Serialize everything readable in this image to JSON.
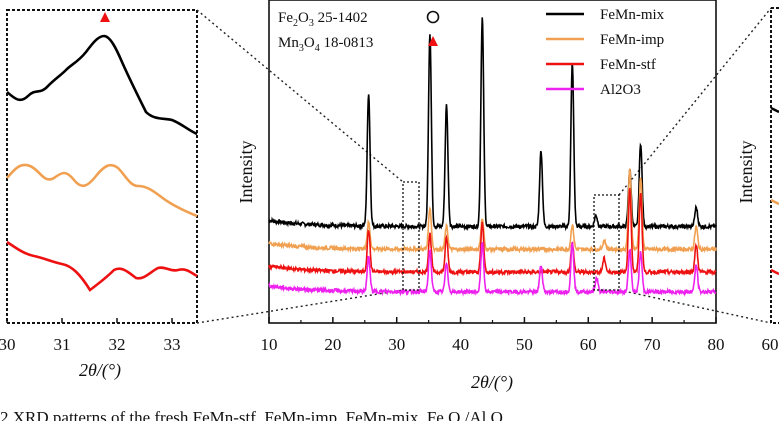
{
  "chart_data": [
    {
      "type": "line",
      "panel": "main",
      "xlabel": "2θ/(°)",
      "ylabel": "Intensity",
      "xlim": [
        10,
        80
      ],
      "xticks": [
        "10",
        "20",
        "30",
        "40",
        "50",
        "60",
        "70",
        "80"
      ],
      "phase_labels": [
        {
          "text_main": "Fe",
          "sub1": "2",
          "text_mid": "O",
          "sub2": "3",
          "text_tail": " 25-1402",
          "marker": "circle"
        },
        {
          "text_main": "Mn",
          "sub1": "3",
          "text_mid": "O",
          "sub2": "4",
          "text_tail": " 18-0813",
          "marker": "triangle"
        }
      ],
      "series": [
        {
          "name": "FeMn-mix",
          "color": "#000000",
          "baseline": 0.92,
          "peaks": [
            [
              25.6,
              1.75
            ],
            [
              35.2,
              2.55
            ],
            [
              37.8,
              1.6
            ],
            [
              43.4,
              2.75
            ],
            [
              52.6,
              1.0
            ],
            [
              57.5,
              2.15
            ],
            [
              61.2,
              0.15
            ],
            [
              66.5,
              0.75
            ],
            [
              68.2,
              1.1
            ],
            [
              76.9,
              0.25
            ]
          ]
        },
        {
          "name": "FeMn-imp",
          "color": "#F0A050",
          "baseline": 0.62,
          "peaks": [
            [
              25.6,
              0.35
            ],
            [
              35.2,
              0.55
            ],
            [
              37.8,
              0.3
            ],
            [
              43.4,
              0.4
            ],
            [
              57.5,
              0.32
            ],
            [
              62.5,
              0.12
            ],
            [
              66.5,
              1.05
            ],
            [
              68.2,
              0.95
            ],
            [
              76.9,
              0.3
            ]
          ]
        },
        {
          "name": "FeMn-stf",
          "color": "#EE1111",
          "baseline": 0.32,
          "peaks": [
            [
              25.6,
              0.55
            ],
            [
              35.2,
              0.5
            ],
            [
              37.8,
              0.45
            ],
            [
              43.4,
              0.65
            ],
            [
              57.5,
              0.38
            ],
            [
              62.5,
              0.18
            ],
            [
              66.5,
              1.1
            ],
            [
              68.2,
              1.05
            ],
            [
              76.9,
              0.35
            ]
          ]
        },
        {
          "name": "Al2O3",
          "color": "#EE22EE",
          "baseline": 0.06,
          "peaks": [
            [
              25.6,
              0.45
            ],
            [
              35.2,
              0.55
            ],
            [
              37.8,
              0.38
            ],
            [
              43.4,
              0.65
            ],
            [
              52.6,
              0.35
            ],
            [
              57.5,
              0.65
            ],
            [
              61.3,
              0.18
            ],
            [
              66.5,
              0.55
            ],
            [
              68.2,
              0.52
            ],
            [
              76.9,
              0.35
            ]
          ]
        }
      ]
    },
    {
      "type": "line",
      "panel": "inset-left",
      "xlabel": "2θ/(°)",
      "xlim": [
        30,
        33.5
      ],
      "xticks": [
        "30",
        "31",
        "32",
        "33"
      ],
      "marker": "triangle",
      "series": [
        {
          "name": "FeMn-mix",
          "color": "#000000"
        },
        {
          "name": "FeMn-imp",
          "color": "#F0A050"
        },
        {
          "name": "FeMn-stf",
          "color": "#EE1111"
        }
      ]
    },
    {
      "type": "line",
      "panel": "inset-right",
      "ylabel": "Intensity",
      "xticks": [
        "60"
      ]
    }
  ],
  "caption_fragment": "2    XRD patterns of the fresh FeMn-stf, FeMn-imp, FeMn-mix, Fe O /Al O",
  "colors": {
    "mix": "#000000",
    "imp": "#F0A050",
    "stf": "#EE1111",
    "al": "#EE22EE",
    "marker_red": "#EE1111"
  }
}
